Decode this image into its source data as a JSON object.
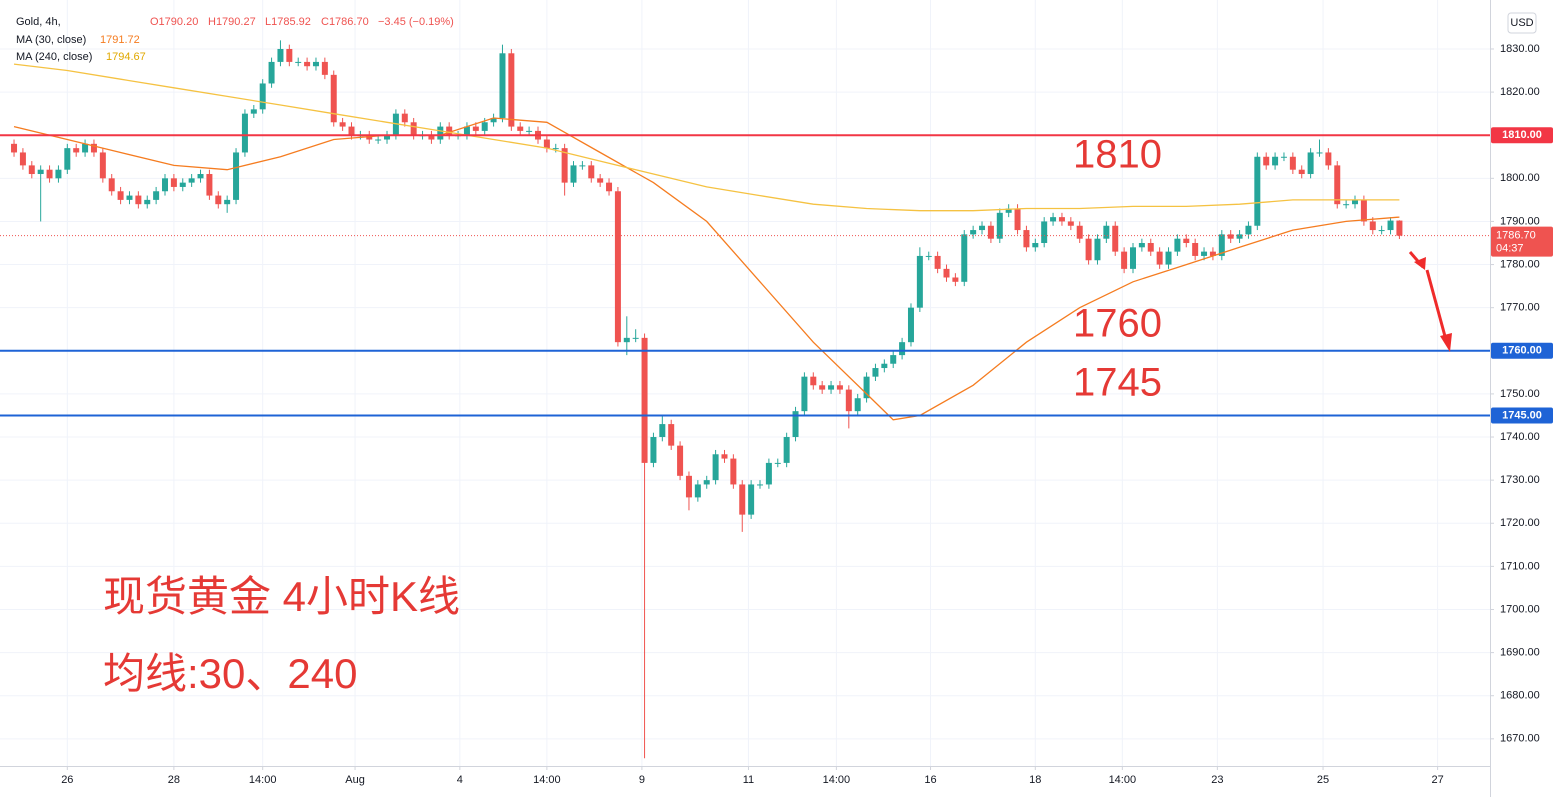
{
  "chart_data": {
    "type": "candlestick",
    "symbol": "Gold, 4h,",
    "ohlc_text": [
      "O1790.20",
      "H1790.27",
      "L1785.92",
      "C1786.70",
      "−3.45 (−0.19%)"
    ],
    "currency": "USD",
    "up_color": "#26a69a",
    "down_color": "#ef5350",
    "xlim": [
      -1.58,
      166.2
    ],
    "ylim": [
      1663.7,
      1839.04
    ],
    "xticks": [
      {
        "value": 6,
        "label": "26"
      },
      {
        "value": 18,
        "label": "28"
      },
      {
        "value": 28,
        "label": "14:00"
      },
      {
        "value": 38.4,
        "label": "Aug"
      },
      {
        "value": 50.2,
        "label": "4"
      },
      {
        "value": 60,
        "label": "14:00"
      },
      {
        "value": 70.7,
        "label": "9"
      },
      {
        "value": 82.7,
        "label": "11"
      },
      {
        "value": 92.6,
        "label": "14:00"
      },
      {
        "value": 103.2,
        "label": "16"
      },
      {
        "value": 115,
        "label": "18"
      },
      {
        "value": 124.8,
        "label": "14:00"
      },
      {
        "value": 135.5,
        "label": "23"
      },
      {
        "value": 147.4,
        "label": "25"
      },
      {
        "value": 160.3,
        "label": "27"
      }
    ],
    "yticks": [
      {
        "value": 1670,
        "label": "1670.00"
      },
      {
        "value": 1680,
        "label": "1680.00"
      },
      {
        "value": 1690,
        "label": "1690.00"
      },
      {
        "value": 1700,
        "label": "1700.00"
      },
      {
        "value": 1710,
        "label": "1710.00"
      },
      {
        "value": 1720,
        "label": "1720.00"
      },
      {
        "value": 1730,
        "label": "1730.00"
      },
      {
        "value": 1740,
        "label": "1740.00"
      },
      {
        "value": 1750,
        "label": "1750.00"
      },
      {
        "value": 1760,
        "label": "1760.00"
      },
      {
        "value": 1770,
        "label": "1770.00"
      },
      {
        "value": 1780,
        "label": "1780.00"
      },
      {
        "value": 1790,
        "label": "1790.00"
      },
      {
        "value": 1800,
        "label": "1800.00"
      },
      {
        "value": 1810,
        "label": "1810.00"
      },
      {
        "value": 1820,
        "label": "1820.00"
      },
      {
        "value": 1830,
        "label": "1830.00"
      }
    ],
    "grid": true,
    "open": [
      1808,
      1806,
      1803,
      1801,
      1802,
      1800,
      1802,
      1807,
      1806,
      1808,
      1806,
      1800,
      1797,
      1795,
      1796,
      1794,
      1795,
      1797,
      1800,
      1798,
      1799,
      1800,
      1801,
      1796,
      1794,
      1795,
      1806,
      1815,
      1816,
      1822,
      1827,
      1830,
      1827,
      1827,
      1826,
      1827,
      1824,
      1813,
      1812,
      1810,
      1810,
      1809,
      1809,
      1810,
      1815,
      1813,
      1810,
      1810,
      1809,
      1812,
      1810,
      1810,
      1812,
      1811,
      1813,
      1814,
      1829,
      1812,
      1811,
      1811,
      1809,
      1807,
      1807,
      1799,
      1803,
      1803,
      1800,
      1799,
      1797,
      1762,
      1763,
      1763,
      1734,
      1740,
      1743,
      1738,
      1731,
      1726,
      1729,
      1730,
      1736,
      1735,
      1729,
      1722,
      1729,
      1729,
      1734,
      1734,
      1740,
      1746,
      1754,
      1752,
      1751,
      1752,
      1751,
      1746,
      1749,
      1754,
      1756,
      1757,
      1759,
      1762,
      1770,
      1782,
      1782,
      1779,
      1777,
      1776,
      1787,
      1788,
      1789,
      1786,
      1792,
      1793,
      1788,
      1784,
      1785,
      1790,
      1791,
      1790,
      1789,
      1786,
      1781,
      1786,
      1789,
      1783,
      1779,
      1784,
      1785,
      1783,
      1780,
      1783,
      1786,
      1785,
      1782,
      1783,
      1782,
      1787,
      1786,
      1787,
      1789,
      1805,
      1803,
      1805,
      1805,
      1802,
      1801,
      1806,
      1806,
      1803,
      1794,
      1794,
      1795,
      1790,
      1788,
      1788,
      1790.2
    ],
    "high": [
      1809,
      1807,
      1804,
      1803,
      1803,
      1803,
      1808,
      1808,
      1809,
      1809,
      1807,
      1801,
      1798,
      1797,
      1797,
      1796,
      1798,
      1801,
      1801,
      1800,
      1801,
      1802,
      1802,
      1797,
      1796,
      1807,
      1816,
      1817,
      1823,
      1828,
      1832,
      1831,
      1828,
      1828,
      1828,
      1828,
      1825,
      1814,
      1813,
      1811,
      1811,
      1810,
      1811,
      1816,
      1816,
      1814,
      1811,
      1811,
      1813,
      1813,
      1811,
      1813,
      1813,
      1814,
      1815,
      1831,
      1830,
      1813,
      1812,
      1812,
      1810,
      1808,
      1808,
      1804,
      1804,
      1804,
      1801,
      1800,
      1798,
      1768,
      1765,
      1764,
      1741,
      1745,
      1744,
      1739,
      1732,
      1730,
      1731,
      1737,
      1737,
      1736,
      1730,
      1730,
      1730,
      1735,
      1735,
      1741,
      1747,
      1755,
      1755,
      1753,
      1753,
      1753,
      1752,
      1750,
      1755,
      1757,
      1758,
      1760,
      1763,
      1771,
      1784,
      1783,
      1783,
      1780,
      1778,
      1788,
      1789,
      1790,
      1790,
      1793,
      1794,
      1794,
      1789,
      1786,
      1791,
      1792,
      1792,
      1791,
      1790,
      1787,
      1787,
      1790,
      1790,
      1784,
      1785,
      1786,
      1786,
      1784,
      1784,
      1787,
      1787,
      1786,
      1784,
      1784,
      1788,
      1788,
      1788,
      1790,
      1806,
      1806,
      1806,
      1806,
      1806,
      1803,
      1807,
      1809,
      1807,
      1804,
      1795,
      1796,
      1796,
      1791,
      1789,
      1791,
      1790.27
    ],
    "low": [
      1805,
      1802,
      1800,
      1790,
      1799,
      1799,
      1801,
      1805,
      1805,
      1805,
      1799,
      1796,
      1794,
      1794,
      1793,
      1793,
      1794,
      1796,
      1797,
      1797,
      1798,
      1799,
      1795,
      1793,
      1792,
      1794,
      1805,
      1814,
      1815,
      1821,
      1826,
      1826,
      1826,
      1825,
      1825,
      1823,
      1812,
      1811,
      1809,
      1809,
      1808,
      1808,
      1808,
      1809,
      1812,
      1809,
      1809,
      1808,
      1808,
      1809,
      1809,
      1809,
      1810,
      1810,
      1812,
      1813,
      1811,
      1810,
      1810,
      1808,
      1806,
      1806,
      1796,
      1798,
      1802,
      1799,
      1798,
      1796,
      1761,
      1759,
      1762,
      1665.5,
      1733,
      1739,
      1737,
      1730,
      1723,
      1725,
      1728,
      1729,
      1734,
      1728,
      1718,
      1721,
      1728,
      1728,
      1733,
      1733,
      1739,
      1745,
      1751,
      1750,
      1750,
      1750,
      1742,
      1745,
      1748,
      1753,
      1755,
      1756,
      1758,
      1761,
      1769,
      1781,
      1778,
      1776,
      1775,
      1775,
      1786,
      1787,
      1785,
      1785,
      1791,
      1787,
      1783,
      1783,
      1784,
      1789,
      1789,
      1788,
      1785,
      1780,
      1780,
      1785,
      1782,
      1778,
      1778,
      1783,
      1782,
      1779,
      1779,
      1782,
      1784,
      1781,
      1781,
      1781,
      1781,
      1785,
      1785,
      1786,
      1788,
      1802,
      1802,
      1804,
      1801,
      1800,
      1800,
      1805,
      1802,
      1793,
      1793,
      1793,
      1789,
      1787,
      1787,
      1787,
      1785.92
    ],
    "close": [
      1806,
      1803,
      1801,
      1802,
      1800,
      1802,
      1807,
      1806,
      1808,
      1806,
      1800,
      1797,
      1795,
      1796,
      1794,
      1795,
      1797,
      1800,
      1798,
      1799,
      1800,
      1801,
      1796,
      1794,
      1795,
      1806,
      1815,
      1816,
      1822,
      1827,
      1830,
      1827,
      1827,
      1826,
      1827,
      1824,
      1813,
      1812,
      1810,
      1810,
      1809,
      1809,
      1810,
      1815,
      1813,
      1810,
      1810,
      1809,
      1812,
      1810,
      1810,
      1812,
      1811,
      1813,
      1814,
      1829,
      1812,
      1811,
      1811,
      1809,
      1807,
      1807,
      1799,
      1803,
      1803,
      1800,
      1799,
      1797,
      1762,
      1763,
      1763,
      1734,
      1740,
      1743,
      1738,
      1731,
      1726,
      1729,
      1730,
      1736,
      1735,
      1729,
      1722,
      1729,
      1729,
      1734,
      1734,
      1740,
      1746,
      1754,
      1752,
      1751,
      1752,
      1751,
      1746,
      1749,
      1754,
      1756,
      1757,
      1759,
      1762,
      1770,
      1782,
      1782,
      1779,
      1777,
      1776,
      1787,
      1788,
      1789,
      1786,
      1792,
      1793,
      1788,
      1784,
      1785,
      1790,
      1791,
      1790,
      1789,
      1786,
      1781,
      1786,
      1789,
      1783,
      1779,
      1784,
      1785,
      1783,
      1780,
      1783,
      1786,
      1785,
      1782,
      1783,
      1782,
      1787,
      1786,
      1787,
      1789,
      1805,
      1803,
      1805,
      1805,
      1802,
      1801,
      1806,
      1806,
      1803,
      1794,
      1794,
      1795,
      1790,
      1788,
      1788,
      1790.2,
      1786.7
    ],
    "series": [
      {
        "name": "MA (30, close)",
        "last_label": "1791.72",
        "color": "#f57c20",
        "x": [
          0,
          6,
          12,
          18,
          24,
          30,
          36,
          42,
          48,
          54,
          60,
          66,
          72,
          78,
          84,
          90,
          96,
          99,
          102,
          108,
          114,
          120,
          126,
          132,
          138,
          144,
          150,
          156
        ],
        "values": [
          1812,
          1809,
          1806,
          1803,
          1802,
          1805,
          1809,
          1810,
          1810,
          1814,
          1813,
          1806,
          1799,
          1790,
          1776,
          1762,
          1750,
          1744,
          1745,
          1752,
          1762,
          1770,
          1776,
          1780,
          1784,
          1788,
          1790,
          1791
        ]
      },
      {
        "name": "MA (240, close)",
        "last_label": "1794.67",
        "color": "#f5c242",
        "x": [
          0,
          6,
          12,
          18,
          24,
          30,
          36,
          42,
          48,
          54,
          60,
          66,
          72,
          78,
          84,
          90,
          96,
          102,
          108,
          114,
          120,
          126,
          132,
          138,
          144,
          150,
          156
        ],
        "values": [
          1826.5,
          1825,
          1823,
          1821,
          1819,
          1817,
          1815,
          1813,
          1811,
          1809,
          1807,
          1804,
          1801,
          1798,
          1796,
          1794,
          1793,
          1792.5,
          1792.5,
          1793,
          1793,
          1793.5,
          1793.5,
          1794,
          1795,
          1795,
          1795
        ]
      }
    ],
    "levels": [
      {
        "value": 1810,
        "label": "1810.00",
        "color": "#f23645",
        "annotation": "1810"
      },
      {
        "value": 1760,
        "label": "1760.00",
        "color": "#1e63d6",
        "annotation": "1760"
      },
      {
        "value": 1745,
        "label": "1745.00",
        "color": "#1e63d6",
        "annotation": "1745"
      }
    ],
    "last_price": {
      "value": 1786.7,
      "label": "1786.70",
      "countdown": "04:37",
      "color": "#ef5350"
    },
    "notes": [
      "现货黄金 4小时K线",
      "均线:30、240"
    ]
  }
}
